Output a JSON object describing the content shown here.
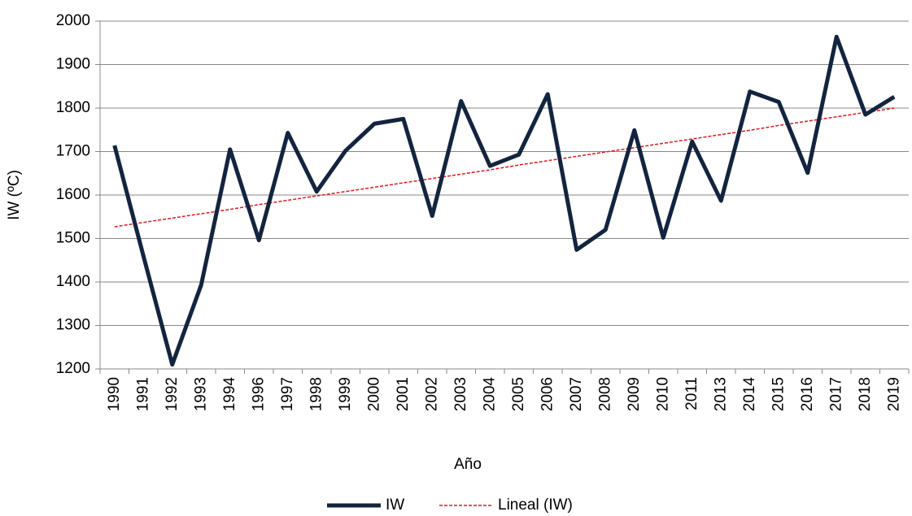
{
  "chart_data": {
    "type": "line",
    "x_label": "Año",
    "y_label": "IW (ºC)",
    "categories": [
      "1990",
      "1991",
      "1992",
      "1993",
      "1994",
      "1996",
      "1997",
      "1998",
      "1999",
      "2000",
      "2001",
      "2002",
      "2003",
      "2004",
      "2005",
      "2006",
      "2007",
      "2008",
      "2009",
      "2010",
      "2011",
      "2013",
      "2014",
      "2015",
      "2016",
      "2017",
      "2018",
      "2019"
    ],
    "series": [
      {
        "name": "IW",
        "color": "#13243f",
        "dashed": false,
        "width": 5,
        "values": [
          1714,
          1460,
          1210,
          1393,
          1705,
          1496,
          1743,
          1608,
          1702,
          1764,
          1775,
          1552,
          1816,
          1667,
          1693,
          1832,
          1474,
          1520,
          1749,
          1502,
          1723,
          1587,
          1838,
          1814,
          1651,
          1964,
          1785,
          1826
        ]
      },
      {
        "name": "Lineal (IW)",
        "color": "#e8141a",
        "dashed": true,
        "width": 1.5,
        "values": [
          1527,
          1537,
          1547,
          1557,
          1567,
          1578,
          1588,
          1598,
          1608,
          1618,
          1628,
          1638,
          1648,
          1658,
          1669,
          1679,
          1689,
          1699,
          1709,
          1719,
          1729,
          1739,
          1749,
          1760,
          1770,
          1780,
          1790,
          1800
        ]
      }
    ],
    "ylim": [
      1200,
      2000
    ],
    "yticks": [
      1200,
      1300,
      1400,
      1500,
      1600,
      1700,
      1800,
      1900,
      2000
    ],
    "grid": true,
    "legend": "bottom"
  }
}
